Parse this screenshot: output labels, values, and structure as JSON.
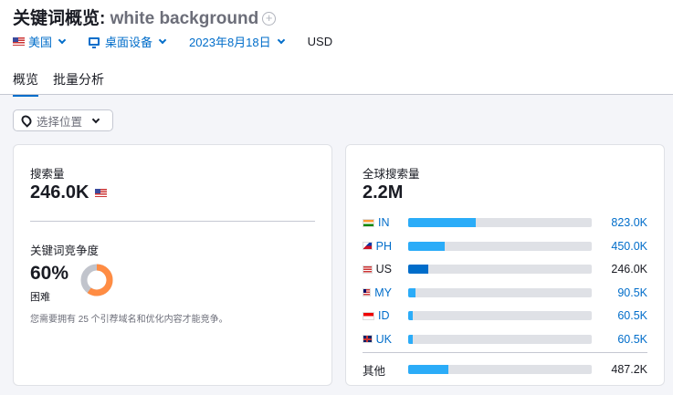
{
  "header": {
    "title": "关键词概览:",
    "keyword": "white background",
    "add_icon": "plus-circle-icon"
  },
  "filters": {
    "country": "美国",
    "device": "桌面设备",
    "date": "2023年8月18日",
    "currency": "USD"
  },
  "tabs": [
    {
      "label": "概览",
      "active": true
    },
    {
      "label": "批量分析",
      "active": false
    }
  ],
  "location": {
    "placeholder": "选择位置"
  },
  "volume": {
    "label": "搜索量",
    "value": "246.0K"
  },
  "difficulty": {
    "label": "关键词竞争度",
    "value": "60%",
    "percent": 60,
    "level": "困难",
    "note": "您需要拥有 25 个引荐域名和优化内容才能竞争。",
    "color": "#ff8c43"
  },
  "global": {
    "label": "全球搜索量",
    "value": "2.2M",
    "rows": [
      {
        "code": "IN",
        "value": "823.0K",
        "fill_pct": 37,
        "link": true
      },
      {
        "code": "PH",
        "value": "450.0K",
        "fill_pct": 20,
        "link": true
      },
      {
        "code": "US",
        "value": "246.0K",
        "fill_pct": 11,
        "link": false,
        "color": "#006dca"
      },
      {
        "code": "MY",
        "value": "90.5K",
        "fill_pct": 4,
        "link": true
      },
      {
        "code": "ID",
        "value": "60.5K",
        "fill_pct": 2.5,
        "link": true
      },
      {
        "code": "UK",
        "value": "60.5K",
        "fill_pct": 2.5,
        "link": true
      }
    ],
    "other": {
      "label": "其他",
      "value": "487.2K",
      "fill_pct": 22
    }
  }
}
